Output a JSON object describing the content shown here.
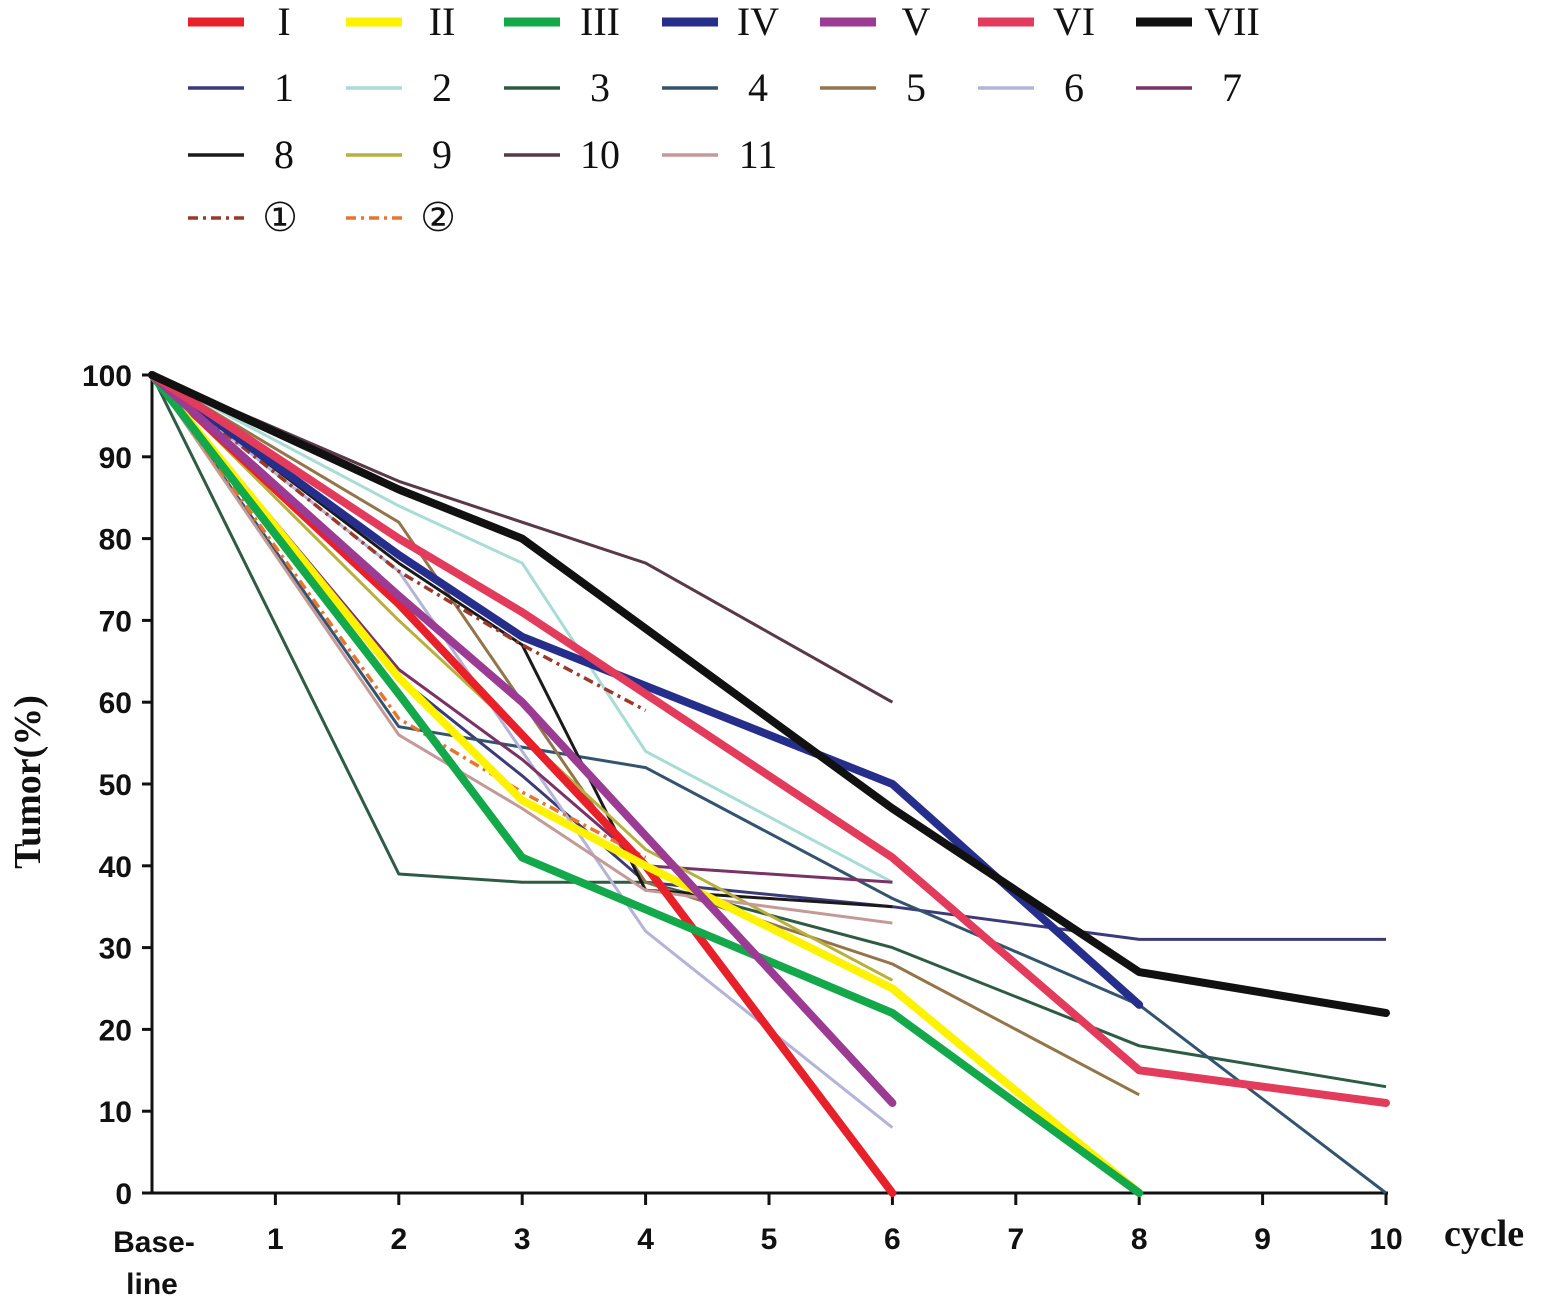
{
  "chart_data": {
    "type": "line",
    "title": "",
    "xlabel": "cycle",
    "ylabel": "Tumor(%)",
    "x_first_label": [
      "Base-",
      "line"
    ],
    "x_tick_labels": [
      "1",
      "2",
      "3",
      "4",
      "5",
      "6",
      "7",
      "8",
      "9",
      "10"
    ],
    "y_tick_labels": [
      "0",
      "10",
      "20",
      "30",
      "40",
      "50",
      "60",
      "70",
      "80",
      "90",
      "100"
    ],
    "xlim": [
      0,
      10
    ],
    "ylim": [
      0,
      100
    ],
    "grid": false,
    "legend_position": "top",
    "series": [
      {
        "name": "I",
        "color": "#e8202a",
        "style": "thick",
        "x": [
          0,
          2,
          4,
          6
        ],
        "values": [
          100,
          72,
          40,
          0
        ]
      },
      {
        "name": "II",
        "color": "#fff200",
        "style": "thick",
        "x": [
          0,
          2,
          3,
          4,
          6,
          8
        ],
        "values": [
          100,
          63,
          48,
          40,
          25,
          0
        ]
      },
      {
        "name": "III",
        "color": "#13a84a",
        "style": "thick",
        "x": [
          0,
          2,
          3,
          6,
          8
        ],
        "values": [
          100,
          61,
          41,
          22,
          0
        ]
      },
      {
        "name": "IV",
        "color": "#262e8c",
        "style": "thick",
        "x": [
          0,
          2,
          3,
          6,
          8
        ],
        "values": [
          100,
          78,
          68,
          50,
          23
        ]
      },
      {
        "name": "V",
        "color": "#9b3b93",
        "style": "thick",
        "x": [
          0,
          2,
          3,
          6
        ],
        "values": [
          100,
          73,
          60,
          11
        ]
      },
      {
        "name": "VI",
        "color": "#e33b5c",
        "style": "thick",
        "x": [
          0,
          2,
          3,
          6,
          8,
          10
        ],
        "values": [
          100,
          80,
          71,
          41,
          15,
          11
        ]
      },
      {
        "name": "VII",
        "color": "#111111",
        "style": "thick",
        "x": [
          0,
          2,
          3,
          6,
          8,
          10
        ],
        "values": [
          100,
          86,
          80,
          47,
          27,
          22
        ]
      },
      {
        "name": "1",
        "color": "#3b3b7a",
        "style": "thin",
        "x": [
          0,
          2,
          3,
          4,
          6,
          8,
          10
        ],
        "values": [
          100,
          63,
          51,
          38,
          35,
          31,
          31
        ]
      },
      {
        "name": "2",
        "color": "#a9dcd6",
        "style": "thin",
        "x": [
          0,
          2,
          3,
          4,
          6
        ],
        "values": [
          100,
          84,
          77,
          54,
          38
        ]
      },
      {
        "name": "3",
        "color": "#2e5b43",
        "style": "thin",
        "x": [
          0,
          2,
          3,
          4,
          6,
          8,
          10
        ],
        "values": [
          100,
          39,
          38,
          38,
          30,
          18,
          13
        ]
      },
      {
        "name": "4",
        "color": "#33536e",
        "style": "thin",
        "x": [
          0,
          2,
          4,
          6,
          8,
          10
        ],
        "values": [
          100,
          57,
          52,
          36,
          23,
          0
        ]
      },
      {
        "name": "5",
        "color": "#94754b",
        "style": "thin",
        "x": [
          0,
          2,
          4,
          6,
          8
        ],
        "values": [
          100,
          82,
          38,
          28,
          12
        ]
      },
      {
        "name": "6",
        "color": "#b4b4d8",
        "style": "thin",
        "x": [
          0,
          2,
          4,
          6
        ],
        "values": [
          100,
          76,
          32,
          8
        ]
      },
      {
        "name": "7",
        "color": "#7a3166",
        "style": "thin",
        "x": [
          0,
          2,
          3,
          4,
          6
        ],
        "values": [
          100,
          64,
          53,
          40,
          38
        ]
      },
      {
        "name": "8",
        "color": "#1a1a1a",
        "style": "thin",
        "x": [
          0,
          2,
          3,
          4,
          6
        ],
        "values": [
          100,
          77,
          67,
          37,
          35
        ]
      },
      {
        "name": "9",
        "color": "#b9af3c",
        "style": "thin",
        "x": [
          0,
          2,
          4,
          6
        ],
        "values": [
          100,
          70,
          42,
          26
        ]
      },
      {
        "name": "10",
        "color": "#5a3848",
        "style": "thin",
        "x": [
          0,
          2,
          4,
          6
        ],
        "values": [
          100,
          87,
          77,
          60
        ]
      },
      {
        "name": "11",
        "color": "#c39a98",
        "style": "thin",
        "x": [
          0,
          2,
          3,
          4,
          6
        ],
        "values": [
          100,
          56,
          47,
          37,
          33
        ]
      },
      {
        "name": "①",
        "color": "#9a3a2a",
        "style": "dashed",
        "x": [
          0,
          2,
          3,
          4
        ],
        "values": [
          100,
          76,
          67,
          59
        ]
      },
      {
        "name": "②",
        "color": "#e8752f",
        "style": "dashed",
        "x": [
          0,
          2,
          3,
          4
        ],
        "values": [
          100,
          58,
          49,
          41
        ]
      }
    ]
  }
}
